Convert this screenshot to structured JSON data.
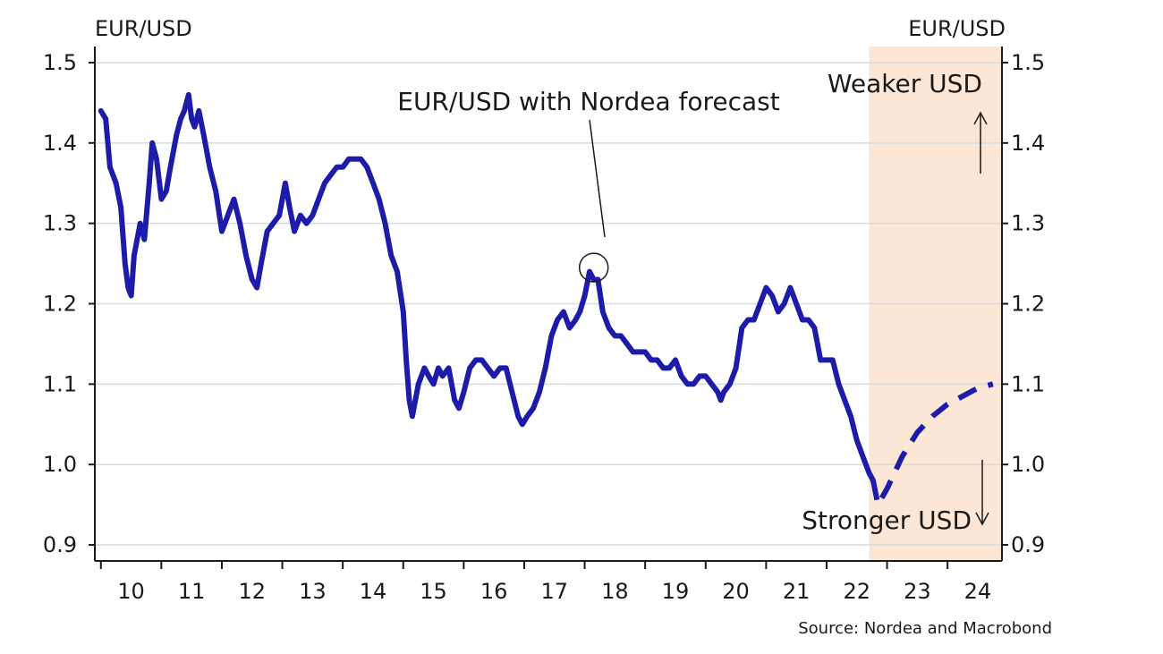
{
  "chart_data": {
    "type": "line",
    "left_axis_label": "EUR/USD",
    "right_axis_label": "EUR/USD",
    "ylim": [
      0.88,
      1.52
    ],
    "y_ticks": [
      "0.9",
      "1.0",
      "1.1",
      "1.2",
      "1.3",
      "1.4",
      "1.5"
    ],
    "x_range": [
      2009.9,
      2024.9
    ],
    "x_tick_labels": [
      "10",
      "11",
      "12",
      "13",
      "14",
      "15",
      "16",
      "17",
      "18",
      "19",
      "20",
      "21",
      "22",
      "23",
      "24"
    ],
    "grid": true,
    "forecast_shading": {
      "from": 2022.7,
      "to": 2024.9,
      "color": "#fce6d6"
    },
    "series": [
      {
        "role": "actual",
        "color": "#1c1ca8",
        "points": [
          [
            2010.0,
            1.44
          ],
          [
            2010.08,
            1.43
          ],
          [
            2010.15,
            1.37
          ],
          [
            2010.25,
            1.35
          ],
          [
            2010.33,
            1.32
          ],
          [
            2010.4,
            1.25
          ],
          [
            2010.45,
            1.22
          ],
          [
            2010.5,
            1.21
          ],
          [
            2010.55,
            1.26
          ],
          [
            2010.65,
            1.3
          ],
          [
            2010.72,
            1.28
          ],
          [
            2010.8,
            1.35
          ],
          [
            2010.85,
            1.4
          ],
          [
            2010.92,
            1.38
          ],
          [
            2011.0,
            1.33
          ],
          [
            2011.08,
            1.34
          ],
          [
            2011.15,
            1.37
          ],
          [
            2011.25,
            1.41
          ],
          [
            2011.32,
            1.43
          ],
          [
            2011.38,
            1.44
          ],
          [
            2011.45,
            1.46
          ],
          [
            2011.5,
            1.43
          ],
          [
            2011.55,
            1.42
          ],
          [
            2011.62,
            1.44
          ],
          [
            2011.7,
            1.41
          ],
          [
            2011.8,
            1.37
          ],
          [
            2011.9,
            1.34
          ],
          [
            2012.0,
            1.29
          ],
          [
            2012.1,
            1.31
          ],
          [
            2012.2,
            1.33
          ],
          [
            2012.3,
            1.3
          ],
          [
            2012.4,
            1.26
          ],
          [
            2012.5,
            1.23
          ],
          [
            2012.58,
            1.22
          ],
          [
            2012.65,
            1.25
          ],
          [
            2012.75,
            1.29
          ],
          [
            2012.85,
            1.3
          ],
          [
            2012.95,
            1.31
          ],
          [
            2013.05,
            1.35
          ],
          [
            2013.12,
            1.32
          ],
          [
            2013.2,
            1.29
          ],
          [
            2013.3,
            1.31
          ],
          [
            2013.4,
            1.3
          ],
          [
            2013.5,
            1.31
          ],
          [
            2013.6,
            1.33
          ],
          [
            2013.7,
            1.35
          ],
          [
            2013.8,
            1.36
          ],
          [
            2013.9,
            1.37
          ],
          [
            2014.0,
            1.37
          ],
          [
            2014.1,
            1.38
          ],
          [
            2014.2,
            1.38
          ],
          [
            2014.3,
            1.38
          ],
          [
            2014.4,
            1.37
          ],
          [
            2014.5,
            1.35
          ],
          [
            2014.6,
            1.33
          ],
          [
            2014.7,
            1.3
          ],
          [
            2014.8,
            1.26
          ],
          [
            2014.9,
            1.24
          ],
          [
            2015.0,
            1.19
          ],
          [
            2015.05,
            1.13
          ],
          [
            2015.1,
            1.08
          ],
          [
            2015.15,
            1.06
          ],
          [
            2015.2,
            1.08
          ],
          [
            2015.25,
            1.1
          ],
          [
            2015.35,
            1.12
          ],
          [
            2015.42,
            1.11
          ],
          [
            2015.5,
            1.1
          ],
          [
            2015.58,
            1.12
          ],
          [
            2015.65,
            1.11
          ],
          [
            2015.75,
            1.12
          ],
          [
            2015.85,
            1.08
          ],
          [
            2015.92,
            1.07
          ],
          [
            2016.0,
            1.09
          ],
          [
            2016.1,
            1.12
          ],
          [
            2016.2,
            1.13
          ],
          [
            2016.3,
            1.13
          ],
          [
            2016.4,
            1.12
          ],
          [
            2016.5,
            1.11
          ],
          [
            2016.6,
            1.12
          ],
          [
            2016.7,
            1.12
          ],
          [
            2016.8,
            1.09
          ],
          [
            2016.9,
            1.06
          ],
          [
            2016.97,
            1.05
          ],
          [
            2017.05,
            1.06
          ],
          [
            2017.15,
            1.07
          ],
          [
            2017.25,
            1.09
          ],
          [
            2017.35,
            1.12
          ],
          [
            2017.45,
            1.16
          ],
          [
            2017.55,
            1.18
          ],
          [
            2017.65,
            1.19
          ],
          [
            2017.75,
            1.17
          ],
          [
            2017.85,
            1.18
          ],
          [
            2017.92,
            1.19
          ],
          [
            2018.0,
            1.21
          ],
          [
            2018.08,
            1.24
          ],
          [
            2018.15,
            1.23
          ],
          [
            2018.22,
            1.23
          ],
          [
            2018.3,
            1.19
          ],
          [
            2018.4,
            1.17
          ],
          [
            2018.5,
            1.16
          ],
          [
            2018.6,
            1.16
          ],
          [
            2018.7,
            1.15
          ],
          [
            2018.8,
            1.14
          ],
          [
            2018.9,
            1.14
          ],
          [
            2019.0,
            1.14
          ],
          [
            2019.1,
            1.13
          ],
          [
            2019.2,
            1.13
          ],
          [
            2019.3,
            1.12
          ],
          [
            2019.4,
            1.12
          ],
          [
            2019.5,
            1.13
          ],
          [
            2019.6,
            1.11
          ],
          [
            2019.7,
            1.1
          ],
          [
            2019.8,
            1.1
          ],
          [
            2019.9,
            1.11
          ],
          [
            2020.0,
            1.11
          ],
          [
            2020.1,
            1.1
          ],
          [
            2020.2,
            1.09
          ],
          [
            2020.25,
            1.08
          ],
          [
            2020.3,
            1.09
          ],
          [
            2020.4,
            1.1
          ],
          [
            2020.5,
            1.12
          ],
          [
            2020.6,
            1.17
          ],
          [
            2020.7,
            1.18
          ],
          [
            2020.8,
            1.18
          ],
          [
            2020.9,
            1.2
          ],
          [
            2021.0,
            1.22
          ],
          [
            2021.1,
            1.21
          ],
          [
            2021.2,
            1.19
          ],
          [
            2021.3,
            1.2
          ],
          [
            2021.4,
            1.22
          ],
          [
            2021.5,
            1.2
          ],
          [
            2021.6,
            1.18
          ],
          [
            2021.7,
            1.18
          ],
          [
            2021.8,
            1.17
          ],
          [
            2021.9,
            1.13
          ],
          [
            2022.0,
            1.13
          ],
          [
            2022.1,
            1.13
          ],
          [
            2022.2,
            1.1
          ],
          [
            2022.3,
            1.08
          ],
          [
            2022.4,
            1.06
          ],
          [
            2022.5,
            1.03
          ],
          [
            2022.6,
            1.01
          ],
          [
            2022.7,
            0.99
          ],
          [
            2022.77,
            0.98
          ]
        ]
      },
      {
        "role": "forecast",
        "color": "#1c1ca8",
        "dashed": true,
        "points": [
          [
            2022.77,
            0.98
          ],
          [
            2022.85,
            0.95
          ],
          [
            2023.0,
            0.97
          ],
          [
            2023.25,
            1.01
          ],
          [
            2023.5,
            1.04
          ],
          [
            2023.75,
            1.06
          ],
          [
            2024.0,
            1.075
          ],
          [
            2024.25,
            1.085
          ],
          [
            2024.5,
            1.095
          ],
          [
            2024.75,
            1.1
          ]
        ]
      }
    ],
    "annotations": {
      "series_label": "EUR/USD with Nordea forecast",
      "weaker": "Weaker USD",
      "stronger": "Stronger USD",
      "circled_point": [
        2018.15,
        1.245
      ]
    },
    "source": "Source: Nordea and Macrobond"
  }
}
